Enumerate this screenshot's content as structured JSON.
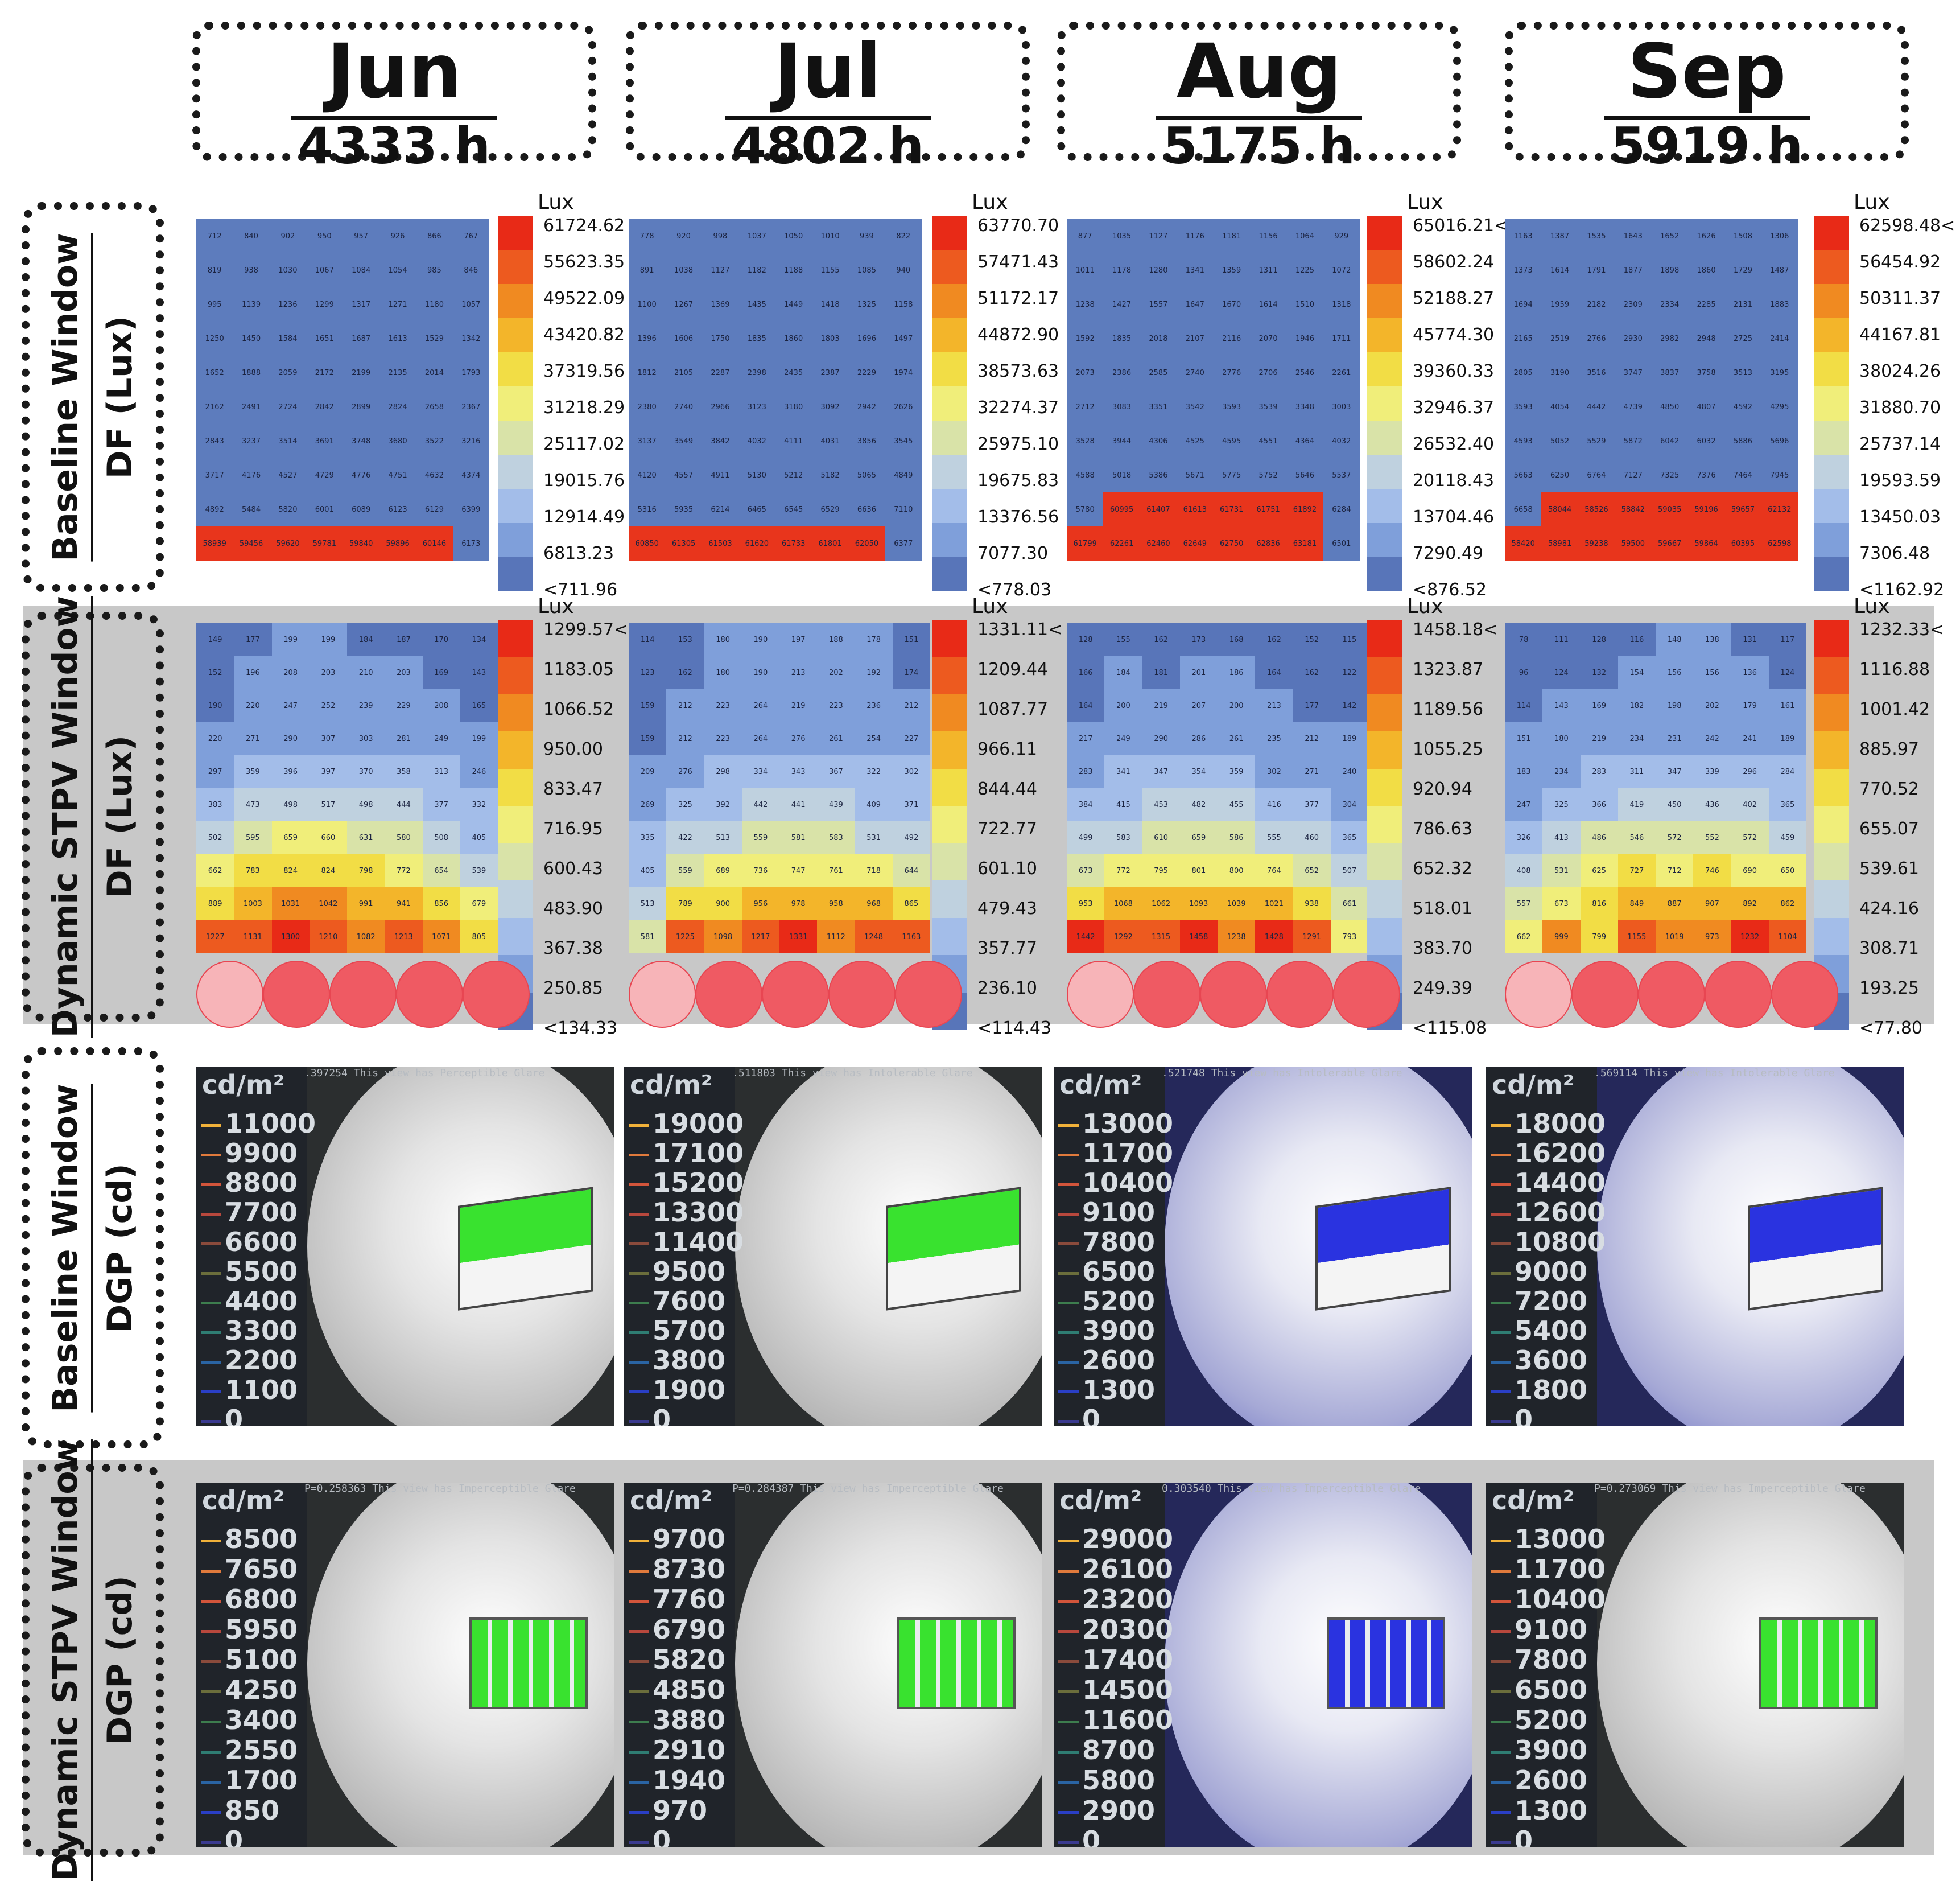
{
  "months": [
    {
      "name": "Jun",
      "hours": "4333 h"
    },
    {
      "name": "Jul",
      "hours": "4802 h"
    },
    {
      "name": "Aug",
      "hours": "5175 h"
    },
    {
      "name": "Sep",
      "hours": "5919 h"
    }
  ],
  "rows": [
    {
      "line1": "Baseline Window",
      "line2": "DF (Lux)"
    },
    {
      "line1": "Dynamic STPV Window",
      "line2": "DF (Lux)"
    },
    {
      "line1": "Baseline Window",
      "line2": "DGP (cd)"
    },
    {
      "line1": "Dynamic STPV Window",
      "line2": "DGP (cd)"
    }
  ],
  "colors": {
    "scale": [
      "#e82a17",
      "#ed5a1f",
      "#f08a21",
      "#f3b52a",
      "#f2dd45",
      "#f0ee7a",
      "#d9e3a8",
      "#bfd1df",
      "#a3bde9",
      "#7f9fda",
      "#5875b9"
    ],
    "cell_blue": "#5d7cbd",
    "cell_light": "#9fb6e3",
    "cell_red": "#e8351c",
    "row_grey": "#c8c8c8"
  },
  "lux_unit": "Lux",
  "baseline_df": [
    {
      "legend": [
        "61724.62",
        "55623.35",
        "49522.09",
        "43420.82",
        "37319.56",
        "31218.29",
        "25117.02",
        "19015.76",
        "12914.49",
        "6813.23",
        "<711.96"
      ],
      "grid": [
        [
          "712",
          "840",
          "902",
          "950",
          "957",
          "926",
          "866",
          "767"
        ],
        [
          "819",
          "938",
          "1030",
          "1067",
          "1084",
          "1054",
          "985",
          "846"
        ],
        [
          "995",
          "1139",
          "1236",
          "1299",
          "1317",
          "1271",
          "1180",
          "1057"
        ],
        [
          "1250",
          "1450",
          "1584",
          "1651",
          "1687",
          "1613",
          "1529",
          "1342"
        ],
        [
          "1652",
          "1888",
          "2059",
          "2172",
          "2199",
          "2135",
          "2014",
          "1793"
        ],
        [
          "2162",
          "2491",
          "2724",
          "2842",
          "2899",
          "2824",
          "2658",
          "2367"
        ],
        [
          "2843",
          "3237",
          "3514",
          "3691",
          "3748",
          "3680",
          "3522",
          "3216"
        ],
        [
          "3717",
          "4176",
          "4527",
          "4729",
          "4776",
          "4751",
          "4632",
          "4374"
        ],
        [
          "4892",
          "5484",
          "5820",
          "6001",
          "6089",
          "6123",
          "6129",
          "6399"
        ],
        [
          "58939",
          "59456",
          "59620",
          "59781",
          "59840",
          "59896",
          "60146",
          "6173"
        ]
      ]
    },
    {
      "legend": [
        "63770.70",
        "57471.43",
        "51172.17",
        "44872.90",
        "38573.63",
        "32274.37",
        "25975.10",
        "19675.83",
        "13376.56",
        "7077.30",
        "<778.03"
      ],
      "grid": [
        [
          "778",
          "920",
          "998",
          "1037",
          "1050",
          "1010",
          "939",
          "822"
        ],
        [
          "891",
          "1038",
          "1127",
          "1182",
          "1188",
          "1155",
          "1085",
          "940"
        ],
        [
          "1100",
          "1267",
          "1369",
          "1435",
          "1449",
          "1418",
          "1325",
          "1158"
        ],
        [
          "1396",
          "1606",
          "1750",
          "1835",
          "1860",
          "1803",
          "1696",
          "1497"
        ],
        [
          "1812",
          "2105",
          "2287",
          "2398",
          "2435",
          "2387",
          "2229",
          "1974"
        ],
        [
          "2380",
          "2740",
          "2966",
          "3123",
          "3180",
          "3092",
          "2942",
          "2626"
        ],
        [
          "3137",
          "3549",
          "3842",
          "4032",
          "4111",
          "4031",
          "3856",
          "3545"
        ],
        [
          "4120",
          "4557",
          "4911",
          "5130",
          "5212",
          "5182",
          "5065",
          "4849"
        ],
        [
          "5316",
          "5935",
          "6214",
          "6465",
          "6545",
          "6529",
          "6636",
          "7110"
        ],
        [
          "60850",
          "61305",
          "61503",
          "61620",
          "61733",
          "61801",
          "62050",
          "6377"
        ]
      ]
    },
    {
      "legend": [
        "65016.21<",
        "58602.24",
        "52188.27",
        "45774.30",
        "39360.33",
        "32946.37",
        "26532.40",
        "20118.43",
        "13704.46",
        "7290.49",
        "<876.52"
      ],
      "grid": [
        [
          "877",
          "1035",
          "1127",
          "1176",
          "1181",
          "1156",
          "1064",
          "929"
        ],
        [
          "1011",
          "1178",
          "1280",
          "1341",
          "1359",
          "1311",
          "1225",
          "1072"
        ],
        [
          "1238",
          "1427",
          "1557",
          "1647",
          "1670",
          "1614",
          "1510",
          "1318"
        ],
        [
          "1592",
          "1835",
          "2018",
          "2107",
          "2116",
          "2070",
          "1946",
          "1711"
        ],
        [
          "2073",
          "2386",
          "2585",
          "2740",
          "2776",
          "2706",
          "2546",
          "2261"
        ],
        [
          "2712",
          "3083",
          "3351",
          "3542",
          "3593",
          "3539",
          "3348",
          "3003"
        ],
        [
          "3528",
          "3944",
          "4306",
          "4525",
          "4595",
          "4551",
          "4364",
          "4032"
        ],
        [
          "4588",
          "5018",
          "5386",
          "5671",
          "5775",
          "5752",
          "5646",
          "5537"
        ],
        [
          "5780",
          "60995",
          "61407",
          "61613",
          "61731",
          "61751",
          "61892",
          "6284"
        ],
        [
          "61799",
          "62261",
          "62460",
          "62649",
          "62750",
          "62836",
          "63181",
          "6501"
        ]
      ]
    },
    {
      "legend": [
        "62598.48<",
        "56454.92",
        "50311.37",
        "44167.81",
        "38024.26",
        "31880.70",
        "25737.14",
        "19593.59",
        "13450.03",
        "7306.48",
        "<1162.92"
      ],
      "grid": [
        [
          "1163",
          "1387",
          "1535",
          "1643",
          "1652",
          "1626",
          "1508",
          "1306"
        ],
        [
          "1373",
          "1614",
          "1791",
          "1877",
          "1898",
          "1860",
          "1729",
          "1487"
        ],
        [
          "1694",
          "1959",
          "2182",
          "2309",
          "2334",
          "2285",
          "2131",
          "1883"
        ],
        [
          "2165",
          "2519",
          "2766",
          "2930",
          "2982",
          "2948",
          "2725",
          "2414"
        ],
        [
          "2805",
          "3190",
          "3516",
          "3747",
          "3837",
          "3758",
          "3513",
          "3195"
        ],
        [
          "3593",
          "4054",
          "4442",
          "4739",
          "4850",
          "4807",
          "4592",
          "4295"
        ],
        [
          "4593",
          "5052",
          "5529",
          "5872",
          "6042",
          "6032",
          "5886",
          "5696"
        ],
        [
          "5663",
          "6250",
          "6764",
          "7127",
          "7325",
          "7376",
          "7464",
          "7945"
        ],
        [
          "6658",
          "58044",
          "58526",
          "58842",
          "59035",
          "59196",
          "59657",
          "62132"
        ],
        [
          "58420",
          "58981",
          "59238",
          "59500",
          "59667",
          "59864",
          "60395",
          "62598"
        ]
      ]
    }
  ],
  "stpv_df": [
    {
      "legend": [
        "1299.57<",
        "1183.05",
        "1066.52",
        "950.00",
        "833.47",
        "716.95",
        "600.43",
        "483.90",
        "367.38",
        "250.85",
        "<134.33"
      ],
      "grid": [
        [
          "149",
          "177",
          "199",
          "199",
          "184",
          "187",
          "170",
          "134"
        ],
        [
          "152",
          "196",
          "208",
          "203",
          "210",
          "203",
          "169",
          "143"
        ],
        [
          "190",
          "220",
          "247",
          "252",
          "239",
          "229",
          "208",
          "165"
        ],
        [
          "220",
          "271",
          "290",
          "307",
          "303",
          "281",
          "249",
          "199"
        ],
        [
          "297",
          "359",
          "396",
          "397",
          "370",
          "358",
          "313",
          "246"
        ],
        [
          "383",
          "473",
          "498",
          "517",
          "498",
          "444",
          "377",
          "332"
        ],
        [
          "502",
          "595",
          "659",
          "660",
          "631",
          "580",
          "508",
          "405"
        ],
        [
          "662",
          "783",
          "824",
          "824",
          "798",
          "772",
          "654",
          "539"
        ],
        [
          "889",
          "1003",
          "1031",
          "1042",
          "991",
          "941",
          "856",
          "679"
        ],
        [
          "1227",
          "1131",
          "1300",
          "1210",
          "1082",
          "1213",
          "1071",
          "805"
        ]
      ]
    },
    {
      "legend": [
        "1331.11<",
        "1209.44",
        "1087.77",
        "966.11",
        "844.44",
        "722.77",
        "601.10",
        "479.43",
        "357.77",
        "236.10",
        "<114.43"
      ],
      "grid": [
        [
          "114",
          "153",
          "180",
          "190",
          "197",
          "188",
          "178",
          "151"
        ],
        [
          "123",
          "162",
          "180",
          "190",
          "213",
          "202",
          "192",
          "174"
        ],
        [
          "159",
          "212",
          "223",
          "264",
          "219",
          "223",
          "236",
          "212"
        ],
        [
          "159",
          "212",
          "223",
          "264",
          "276",
          "261",
          "254",
          "227"
        ],
        [
          "209",
          "276",
          "298",
          "334",
          "343",
          "367",
          "322",
          "302"
        ],
        [
          "269",
          "325",
          "392",
          "442",
          "441",
          "439",
          "409",
          "371"
        ],
        [
          "335",
          "422",
          "513",
          "559",
          "581",
          "583",
          "531",
          "492"
        ],
        [
          "405",
          "559",
          "689",
          "736",
          "747",
          "761",
          "718",
          "644"
        ],
        [
          "513",
          "789",
          "900",
          "956",
          "978",
          "958",
          "968",
          "865"
        ],
        [
          "581",
          "1225",
          "1098",
          "1217",
          "1331",
          "1112",
          "1248",
          "1163"
        ]
      ]
    },
    {
      "legend": [
        "1458.18<",
        "1323.87",
        "1189.56",
        "1055.25",
        "920.94",
        "786.63",
        "652.32",
        "518.01",
        "383.70",
        "249.39",
        "<115.08"
      ],
      "grid": [
        [
          "128",
          "155",
          "162",
          "173",
          "168",
          "162",
          "152",
          "115"
        ],
        [
          "166",
          "184",
          "181",
          "201",
          "186",
          "164",
          "162",
          "122"
        ],
        [
          "164",
          "200",
          "219",
          "207",
          "200",
          "213",
          "177",
          "142"
        ],
        [
          "217",
          "249",
          "290",
          "286",
          "261",
          "235",
          "212",
          "189"
        ],
        [
          "283",
          "341",
          "347",
          "354",
          "359",
          "302",
          "271",
          "240"
        ],
        [
          "384",
          "415",
          "453",
          "482",
          "455",
          "416",
          "377",
          "304"
        ],
        [
          "499",
          "583",
          "610",
          "659",
          "586",
          "555",
          "460",
          "365"
        ],
        [
          "673",
          "772",
          "795",
          "801",
          "800",
          "764",
          "652",
          "507"
        ],
        [
          "953",
          "1068",
          "1062",
          "1093",
          "1039",
          "1021",
          "938",
          "661"
        ],
        [
          "1442",
          "1292",
          "1315",
          "1458",
          "1238",
          "1428",
          "1291",
          "793"
        ]
      ]
    },
    {
      "legend": [
        "1232.33<",
        "1116.88",
        "1001.42",
        "885.97",
        "770.52",
        "655.07",
        "539.61",
        "424.16",
        "308.71",
        "193.25",
        "<77.80"
      ],
      "grid": [
        [
          "78",
          "111",
          "128",
          "116",
          "148",
          "138",
          "131",
          "117"
        ],
        [
          "96",
          "124",
          "132",
          "154",
          "156",
          "156",
          "136",
          "124"
        ],
        [
          "114",
          "143",
          "169",
          "182",
          "198",
          "202",
          "179",
          "161"
        ],
        [
          "151",
          "180",
          "219",
          "234",
          "231",
          "242",
          "241",
          "189"
        ],
        [
          "183",
          "234",
          "283",
          "311",
          "347",
          "339",
          "296",
          "284"
        ],
        [
          "247",
          "325",
          "366",
          "419",
          "450",
          "436",
          "402",
          "365"
        ],
        [
          "326",
          "413",
          "486",
          "546",
          "572",
          "552",
          "572",
          "459"
        ],
        [
          "408",
          "531",
          "625",
          "727",
          "712",
          "746",
          "690",
          "650"
        ],
        [
          "557",
          "673",
          "816",
          "849",
          "887",
          "907",
          "892",
          "862"
        ],
        [
          "662",
          "999",
          "799",
          "1155",
          "1019",
          "973",
          "1232",
          "1104"
        ]
      ]
    }
  ],
  "cd_unit": "cd/m²",
  "baseline_dgp": [
    {
      "glare": ".397254 This view has Perceptible Glare",
      "ticks": [
        "11000",
        "9900",
        "8800",
        "7700",
        "6600",
        "5500",
        "4400",
        "3300",
        "2200",
        "1100",
        "0"
      ],
      "tint": "#9a9a9a",
      "window": "#39e22f"
    },
    {
      "glare": ".511803 This view has Intolerable Glare",
      "ticks": [
        "19000",
        "17100",
        "15200",
        "13300",
        "11400",
        "9500",
        "7600",
        "5700",
        "3800",
        "1900",
        "0"
      ],
      "tint": "#9a9a9a",
      "window": "#39e22f"
    },
    {
      "glare": ".521748 This view has Intolerable Glare",
      "ticks": [
        "13000",
        "11700",
        "10400",
        "9100",
        "7800",
        "6500",
        "5200",
        "3900",
        "2600",
        "1300",
        "0"
      ],
      "tint": "#4b4fa6",
      "window": "#2a33e0"
    },
    {
      "glare": ".569114 This view has Intolerable Glare",
      "ticks": [
        "18000",
        "16200",
        "14400",
        "12600",
        "10800",
        "9000",
        "7200",
        "5400",
        "3600",
        "1800",
        "0"
      ],
      "tint": "#4b4fa6",
      "window": "#2a33e0"
    }
  ],
  "stpv_dgp": [
    {
      "glare": "P=0.258363 This view has Imperceptible Glare",
      "ticks": [
        "8500",
        "7650",
        "6800",
        "5950",
        "5100",
        "4250",
        "3400",
        "2550",
        "1700",
        "850",
        "0"
      ],
      "tint": "#8a8a8a",
      "window": "#39e22f"
    },
    {
      "glare": "P=0.284387 This view has Imperceptible Glare",
      "ticks": [
        "9700",
        "8730",
        "7760",
        "6790",
        "5820",
        "4850",
        "3880",
        "2910",
        "1940",
        "970",
        "0"
      ],
      "tint": "#8a8a8a",
      "window": "#39e22f"
    },
    {
      "glare": "0.303540 This view has Imperceptible Glare",
      "ticks": [
        "29000",
        "26100",
        "23200",
        "20300",
        "17400",
        "14500",
        "11600",
        "8700",
        "5800",
        "2900",
        "0"
      ],
      "tint": "#4b4fa6",
      "window": "#2a33e0"
    },
    {
      "glare": "P=0.273069 This view has Imperceptible Glare",
      "ticks": [
        "13000",
        "11700",
        "10400",
        "9100",
        "7800",
        "6500",
        "5200",
        "3900",
        "2600",
        "1300",
        "0"
      ],
      "tint": "#8a8a8a",
      "window": "#39e22f"
    }
  ]
}
